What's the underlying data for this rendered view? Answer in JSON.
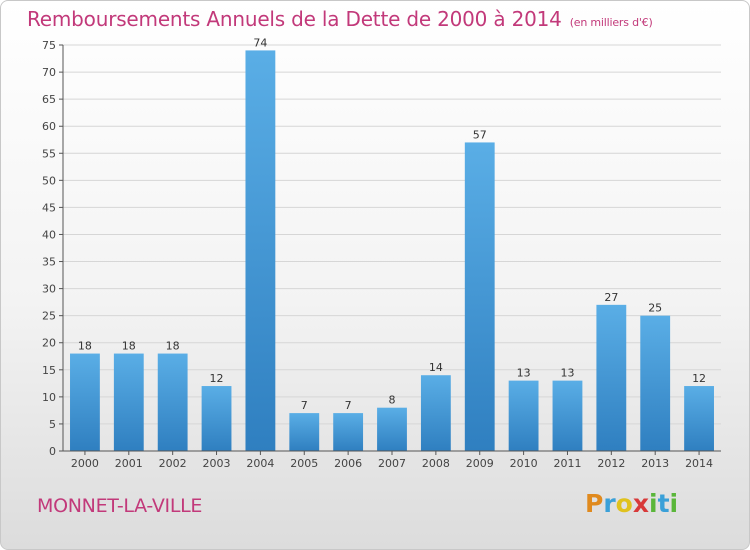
{
  "header": {
    "title": "Remboursements Annuels de la Dette de 2000 à 2014",
    "subtitle": "(en milliers d'€)"
  },
  "footer": {
    "place": "MONNET-LA-VILLE",
    "logo": {
      "letters": [
        "P",
        "r",
        "o",
        "x",
        "i",
        "t",
        "i"
      ],
      "colors": [
        "#e08a1e",
        "#3aa0d8",
        "#e0c21e",
        "#d83a3a",
        "#5ab63a",
        "#3aa0d8",
        "#5ab63a"
      ]
    }
  },
  "chart_data": {
    "type": "bar",
    "categories": [
      "2000",
      "2001",
      "2002",
      "2003",
      "2004",
      "2005",
      "2006",
      "2007",
      "2008",
      "2009",
      "2010",
      "2011",
      "2012",
      "2013",
      "2014"
    ],
    "values": [
      18,
      18,
      18,
      12,
      74,
      7,
      7,
      8,
      14,
      57,
      13,
      13,
      27,
      25,
      12
    ],
    "data_labels": [
      "18",
      "18",
      "18",
      "12",
      "74",
      "7",
      "7",
      "8",
      "14",
      "57",
      "13",
      "13",
      "27",
      "25",
      "12"
    ],
    "yticks": [
      "0",
      "5",
      "10",
      "15",
      "20",
      "25",
      "30",
      "35",
      "40",
      "45",
      "50",
      "55",
      "60",
      "65",
      "70",
      "75"
    ],
    "ylim": [
      0,
      75
    ],
    "grid": true,
    "bar_color": "#3d95d8"
  }
}
